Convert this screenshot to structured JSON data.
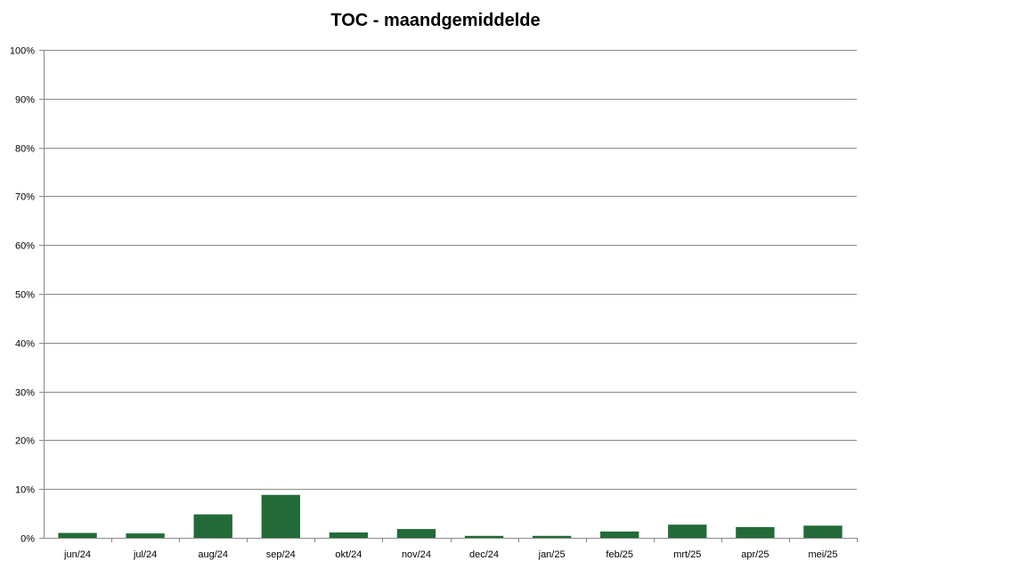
{
  "chart_data": {
    "type": "bar",
    "title": "TOC - maandgemiddelde",
    "xlabel": "",
    "ylabel": "",
    "categories": [
      "jun/24",
      "jul/24",
      "aug/24",
      "sep/24",
      "okt/24",
      "nov/24",
      "dec/24",
      "jan/25",
      "feb/25",
      "mrt/25",
      "apr/25",
      "mei/25"
    ],
    "values": [
      1.0,
      0.9,
      4.8,
      8.8,
      1.1,
      1.8,
      0.4,
      0.4,
      1.3,
      2.7,
      2.2,
      2.5
    ],
    "ylim": [
      0,
      100
    ],
    "yticks": [
      "0%",
      "10%",
      "20%",
      "30%",
      "40%",
      "50%",
      "60%",
      "70%",
      "80%",
      "90%",
      "100%"
    ],
    "grid": true,
    "legend": "none",
    "bar_color": "#226B38"
  }
}
